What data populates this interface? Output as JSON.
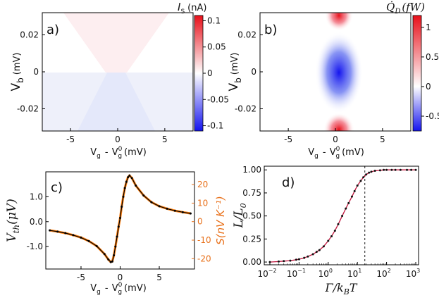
{
  "chart_data": [
    {
      "panel": "a)",
      "type": "heatmap",
      "xlabel_main": "V",
      "xlabel_sub1": "g",
      "xlabel_mid": "-",
      "xlabel_v": "V",
      "xlabel_sup": "0",
      "xlabel_sub2": "g",
      "xlabel_unit": "(mV)",
      "ylabel_main": "V",
      "ylabel_sub": "b",
      "ylabel_unit": "(mV)",
      "xticks": [
        "-5",
        "0",
        "5"
      ],
      "xtick_values": [
        -5,
        0,
        5
      ],
      "xlim": [
        -8,
        8
      ],
      "yticks": [
        "0.02",
        "0",
        "-0.02"
      ],
      "ytick_values": [
        0.02,
        0,
        -0.02
      ],
      "ylim": [
        -0.032,
        0.032
      ],
      "colorbar_title_main": "I",
      "colorbar_title_sub": "S",
      "colorbar_title_unit": "(nA)",
      "colorbar_ticks": [
        "0.1",
        "0.05",
        "0",
        "-0.05",
        "-0.1"
      ],
      "colorbar_values": [
        0.1,
        0.05,
        0,
        -0.05,
        -0.1
      ],
      "clim": [
        -0.11,
        0.11
      ],
      "colors": {
        "positive": "#e8101a",
        "negative": "#1414ee",
        "zero": "#ffffff"
      }
    },
    {
      "panel": "b)",
      "type": "heatmap",
      "xlabel_main": "V",
      "xlabel_sub1": "g",
      "xlabel_mid": "-",
      "xlabel_v": "V",
      "xlabel_sup": "0",
      "xlabel_sub2": "g",
      "xlabel_unit": "(mV)",
      "ylabel_main": "V",
      "ylabel_sub": "b",
      "ylabel_unit": "(mV)",
      "xticks": [
        "-5",
        "0",
        "5"
      ],
      "xtick_values": [
        -5,
        0,
        5
      ],
      "xlim": [
        -8,
        8
      ],
      "yticks": [
        "0.02",
        "0",
        "-0.02"
      ],
      "ytick_values": [
        0.02,
        0,
        -0.02
      ],
      "ylim": [
        -0.032,
        0.032
      ],
      "colorbar_title": "Q̇_D(fW)",
      "colorbar_title_q": "Q̇",
      "colorbar_title_sub": "D",
      "colorbar_title_unit": "(fW)",
      "colorbar_ticks": [
        "1",
        "0.5",
        "0",
        "-0.5"
      ],
      "colorbar_values": [
        1,
        0.5,
        0,
        -0.5
      ],
      "clim": [
        -0.75,
        1.2
      ],
      "colors": {
        "positive": "#e8101a",
        "negative": "#1414ee",
        "zero": "#ffffff"
      }
    },
    {
      "panel": "c)",
      "type": "line",
      "xlabel_main": "V",
      "xlabel_sub1": "g",
      "xlabel_mid": "-",
      "xlabel_v": "V",
      "xlabel_sup": "0",
      "xlabel_sub2": "g",
      "xlabel_unit": "(mV)",
      "ylabel_left_main": "V",
      "ylabel_left_sub": "th",
      "ylabel_left_unit": "(μV)",
      "ylabel_right": "S(nV K⁻¹)",
      "xticks": [
        "-5",
        "0",
        "5"
      ],
      "xtick_values": [
        -5,
        0,
        5
      ],
      "xlim": [
        -9.5,
        9.5
      ],
      "yticks_left": [
        "1.0",
        "0.0",
        "-1.0"
      ],
      "ytick_left_values": [
        1.0,
        0.0,
        -1.0
      ],
      "ylim_left": [
        -1.9,
        2.0
      ],
      "yticks_right": [
        "20",
        "10",
        "0",
        "-10",
        "-20"
      ],
      "ytick_right_values": [
        20,
        10,
        0,
        -10,
        -20
      ],
      "ylim_right": [
        -25.6,
        26.9
      ],
      "x": [
        -9,
        -8,
        -7,
        -6,
        -5,
        -4,
        -3,
        -2,
        -1.5,
        -1.2,
        -1,
        -0.8,
        -0.6,
        -0.4,
        -0.2,
        0,
        0.2,
        0.4,
        0.6,
        0.8,
        1,
        1.2,
        1.5,
        2,
        3,
        4,
        5,
        6,
        7,
        8,
        9
      ],
      "series": [
        {
          "name": "V_th",
          "color": "#000000",
          "values": [
            -0.35,
            -0.4,
            -0.46,
            -0.54,
            -0.64,
            -0.78,
            -0.98,
            -1.3,
            -1.52,
            -1.62,
            -1.6,
            -1.35,
            -1.0,
            -0.6,
            -0.2,
            0.15,
            0.6,
            1.0,
            1.35,
            1.6,
            1.78,
            1.85,
            1.75,
            1.45,
            1.05,
            0.78,
            0.62,
            0.52,
            0.44,
            0.38,
            0.33
          ]
        },
        {
          "name": "S",
          "color": "#ff7f0e",
          "values": [
            -4.7,
            -5.4,
            -6.2,
            -7.3,
            -8.6,
            -10.5,
            -13.2,
            -17.5,
            -20.5,
            -21.8,
            -21.5,
            -18.2,
            -13.5,
            -8.1,
            -2.7,
            2.0,
            8.1,
            13.5,
            18.2,
            21.5,
            24.0,
            24.9,
            23.6,
            19.5,
            14.1,
            10.5,
            8.3,
            7.0,
            5.9,
            5.1,
            4.4
          ]
        }
      ],
      "colors": {
        "right_axis": "#e8701a",
        "fit": "#ff7f0e",
        "data": "#000000"
      }
    },
    {
      "panel": "d)",
      "type": "scatter",
      "xlabel": "Γ/k_BT",
      "xlabel_main": "Γ/k",
      "xlabel_sub": "B",
      "xlabel_t": "T",
      "ylabel": "L/L₀",
      "ylabel_main": "L/L",
      "ylabel_sub": "0",
      "xscale": "log",
      "xlim": [
        0.01,
        1000
      ],
      "xticks_base": [
        "10",
        "10",
        "10",
        "10",
        "10",
        "10"
      ],
      "xticks_exp": [
        "−2",
        "−1",
        "0",
        "1",
        "2",
        "3"
      ],
      "xtick_values": [
        0.01,
        0.1,
        1,
        10,
        100,
        1000
      ],
      "yticks": [
        "1.00",
        "0.75",
        "0.50",
        "0.25",
        "0.00"
      ],
      "ytick_values": [
        1.0,
        0.75,
        0.5,
        0.25,
        0.0
      ],
      "ylim": [
        -0.03,
        1.04
      ],
      "vline_x": 18,
      "x": [
        0.01,
        0.02,
        0.03,
        0.05,
        0.08,
        0.1,
        0.15,
        0.2,
        0.3,
        0.4,
        0.5,
        0.7,
        1,
        1.3,
        1.7,
        2.2,
        3,
        4,
        5,
        6.5,
        8,
        10,
        13,
        16,
        20,
        25,
        30,
        40,
        60,
        80,
        100,
        150,
        200,
        300,
        500,
        700,
        1000
      ],
      "values": [
        0.0,
        0.005,
        0.01,
        0.015,
        0.025,
        0.03,
        0.045,
        0.06,
        0.085,
        0.11,
        0.13,
        0.17,
        0.23,
        0.28,
        0.34,
        0.41,
        0.5,
        0.58,
        0.64,
        0.71,
        0.77,
        0.83,
        0.88,
        0.92,
        0.95,
        0.97,
        0.98,
        0.99,
        0.995,
        1.0,
        1.0,
        1.0,
        1.0,
        1.0,
        1.0,
        1.0,
        1.0
      ],
      "colors": {
        "fit": "#c0143c",
        "points": "#111111",
        "vline": "#000000"
      }
    }
  ]
}
